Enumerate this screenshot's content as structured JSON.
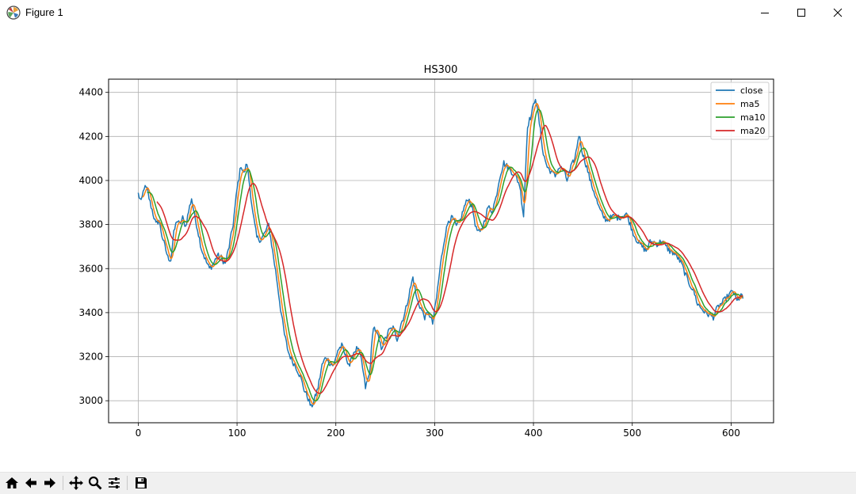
{
  "window": {
    "title": "Figure 1",
    "controls": [
      "minimize-icon",
      "maximize-icon",
      "close-icon"
    ]
  },
  "toolbar": {
    "buttons": [
      "home-icon",
      "back-arrow-icon",
      "forward-arrow-icon",
      "pan-icon",
      "zoom-icon",
      "configure-subplots-icon",
      "save-icon"
    ]
  },
  "chart_data": {
    "type": "line",
    "title": "HS300",
    "xlabel": "",
    "ylabel": "",
    "xlim": [
      -30,
      643
    ],
    "ylim": [
      2900,
      4460
    ],
    "xticks": [
      0,
      100,
      200,
      300,
      400,
      500,
      600
    ],
    "yticks": [
      3000,
      3200,
      3400,
      3600,
      3800,
      4000,
      4200,
      4400
    ],
    "grid": true,
    "legend_position": "top-right",
    "close_anchors": [
      [
        0,
        3940
      ],
      [
        3,
        3900
      ],
      [
        6,
        3970
      ],
      [
        9,
        3960
      ],
      [
        12,
        3900
      ],
      [
        15,
        3850
      ],
      [
        18,
        3800
      ],
      [
        21,
        3820
      ],
      [
        24,
        3750
      ],
      [
        27,
        3700
      ],
      [
        30,
        3650
      ],
      [
        33,
        3640
      ],
      [
        36,
        3760
      ],
      [
        39,
        3820
      ],
      [
        42,
        3800
      ],
      [
        45,
        3830
      ],
      [
        48,
        3790
      ],
      [
        51,
        3860
      ],
      [
        54,
        3920
      ],
      [
        57,
        3840
      ],
      [
        60,
        3780
      ],
      [
        64,
        3690
      ],
      [
        68,
        3640
      ],
      [
        72,
        3600
      ],
      [
        76,
        3620
      ],
      [
        80,
        3660
      ],
      [
        84,
        3650
      ],
      [
        88,
        3620
      ],
      [
        92,
        3700
      ],
      [
        96,
        3800
      ],
      [
        100,
        3960
      ],
      [
        104,
        4070
      ],
      [
        107,
        4030
      ],
      [
        110,
        4080
      ],
      [
        113,
        3970
      ],
      [
        116,
        3850
      ],
      [
        120,
        3740
      ],
      [
        124,
        3730
      ],
      [
        128,
        3760
      ],
      [
        132,
        3800
      ],
      [
        136,
        3680
      ],
      [
        140,
        3560
      ],
      [
        144,
        3420
      ],
      [
        148,
        3300
      ],
      [
        152,
        3220
      ],
      [
        156,
        3180
      ],
      [
        160,
        3150
      ],
      [
        164,
        3110
      ],
      [
        168,
        3050
      ],
      [
        172,
        3010
      ],
      [
        175,
        2970
      ],
      [
        178,
        3000
      ],
      [
        182,
        3060
      ],
      [
        186,
        3160
      ],
      [
        190,
        3200
      ],
      [
        194,
        3170
      ],
      [
        198,
        3160
      ],
      [
        202,
        3230
      ],
      [
        206,
        3250
      ],
      [
        210,
        3200
      ],
      [
        214,
        3160
      ],
      [
        218,
        3220
      ],
      [
        222,
        3240
      ],
      [
        226,
        3180
      ],
      [
        230,
        3060
      ],
      [
        234,
        3120
      ],
      [
        238,
        3340
      ],
      [
        242,
        3300
      ],
      [
        246,
        3240
      ],
      [
        250,
        3280
      ],
      [
        254,
        3320
      ],
      [
        258,
        3330
      ],
      [
        262,
        3280
      ],
      [
        266,
        3350
      ],
      [
        270,
        3400
      ],
      [
        274,
        3480
      ],
      [
        278,
        3560
      ],
      [
        282,
        3460
      ],
      [
        286,
        3420
      ],
      [
        290,
        3380
      ],
      [
        294,
        3400
      ],
      [
        298,
        3350
      ],
      [
        302,
        3470
      ],
      [
        306,
        3620
      ],
      [
        310,
        3740
      ],
      [
        314,
        3820
      ],
      [
        318,
        3830
      ],
      [
        322,
        3790
      ],
      [
        326,
        3820
      ],
      [
        330,
        3880
      ],
      [
        334,
        3920
      ],
      [
        338,
        3880
      ],
      [
        342,
        3780
      ],
      [
        346,
        3760
      ],
      [
        350,
        3810
      ],
      [
        354,
        3880
      ],
      [
        358,
        3860
      ],
      [
        362,
        3920
      ],
      [
        366,
        4020
      ],
      [
        370,
        4080
      ],
      [
        374,
        4060
      ],
      [
        378,
        4040
      ],
      [
        382,
        4020
      ],
      [
        386,
        3980
      ],
      [
        390,
        3840
      ],
      [
        394,
        4250
      ],
      [
        398,
        4300
      ],
      [
        402,
        4380
      ],
      [
        406,
        4260
      ],
      [
        410,
        4120
      ],
      [
        414,
        4060
      ],
      [
        418,
        4040
      ],
      [
        422,
        4020
      ],
      [
        426,
        4060
      ],
      [
        430,
        4050
      ],
      [
        434,
        4000
      ],
      [
        438,
        4060
      ],
      [
        442,
        4100
      ],
      [
        446,
        4210
      ],
      [
        450,
        4120
      ],
      [
        454,
        4060
      ],
      [
        458,
        3990
      ],
      [
        462,
        3940
      ],
      [
        466,
        3880
      ],
      [
        470,
        3840
      ],
      [
        474,
        3820
      ],
      [
        478,
        3830
      ],
      [
        482,
        3840
      ],
      [
        486,
        3830
      ],
      [
        490,
        3840
      ],
      [
        494,
        3850
      ],
      [
        498,
        3800
      ],
      [
        502,
        3750
      ],
      [
        506,
        3720
      ],
      [
        510,
        3700
      ],
      [
        514,
        3680
      ],
      [
        518,
        3720
      ],
      [
        522,
        3720
      ],
      [
        526,
        3710
      ],
      [
        530,
        3730
      ],
      [
        534,
        3700
      ],
      [
        538,
        3680
      ],
      [
        542,
        3670
      ],
      [
        546,
        3650
      ],
      [
        550,
        3620
      ],
      [
        554,
        3570
      ],
      [
        558,
        3530
      ],
      [
        562,
        3500
      ],
      [
        566,
        3440
      ],
      [
        570,
        3420
      ],
      [
        574,
        3400
      ],
      [
        578,
        3390
      ],
      [
        582,
        3380
      ],
      [
        586,
        3420
      ],
      [
        590,
        3440
      ],
      [
        594,
        3460
      ],
      [
        598,
        3480
      ],
      [
        602,
        3500
      ],
      [
        606,
        3450
      ],
      [
        610,
        3480
      ],
      [
        612,
        3460
      ]
    ],
    "series": [
      {
        "name": "close",
        "color": "#1f77b4",
        "source": "close",
        "ma_window": 1,
        "noise": 28
      },
      {
        "name": "ma5",
        "color": "#ff7f0e",
        "source": "close",
        "ma_window": 5,
        "noise": 0
      },
      {
        "name": "ma10",
        "color": "#2ca02c",
        "source": "close",
        "ma_window": 10,
        "noise": 0
      },
      {
        "name": "ma20",
        "color": "#d62728",
        "source": "close",
        "ma_window": 20,
        "noise": 0
      }
    ]
  }
}
